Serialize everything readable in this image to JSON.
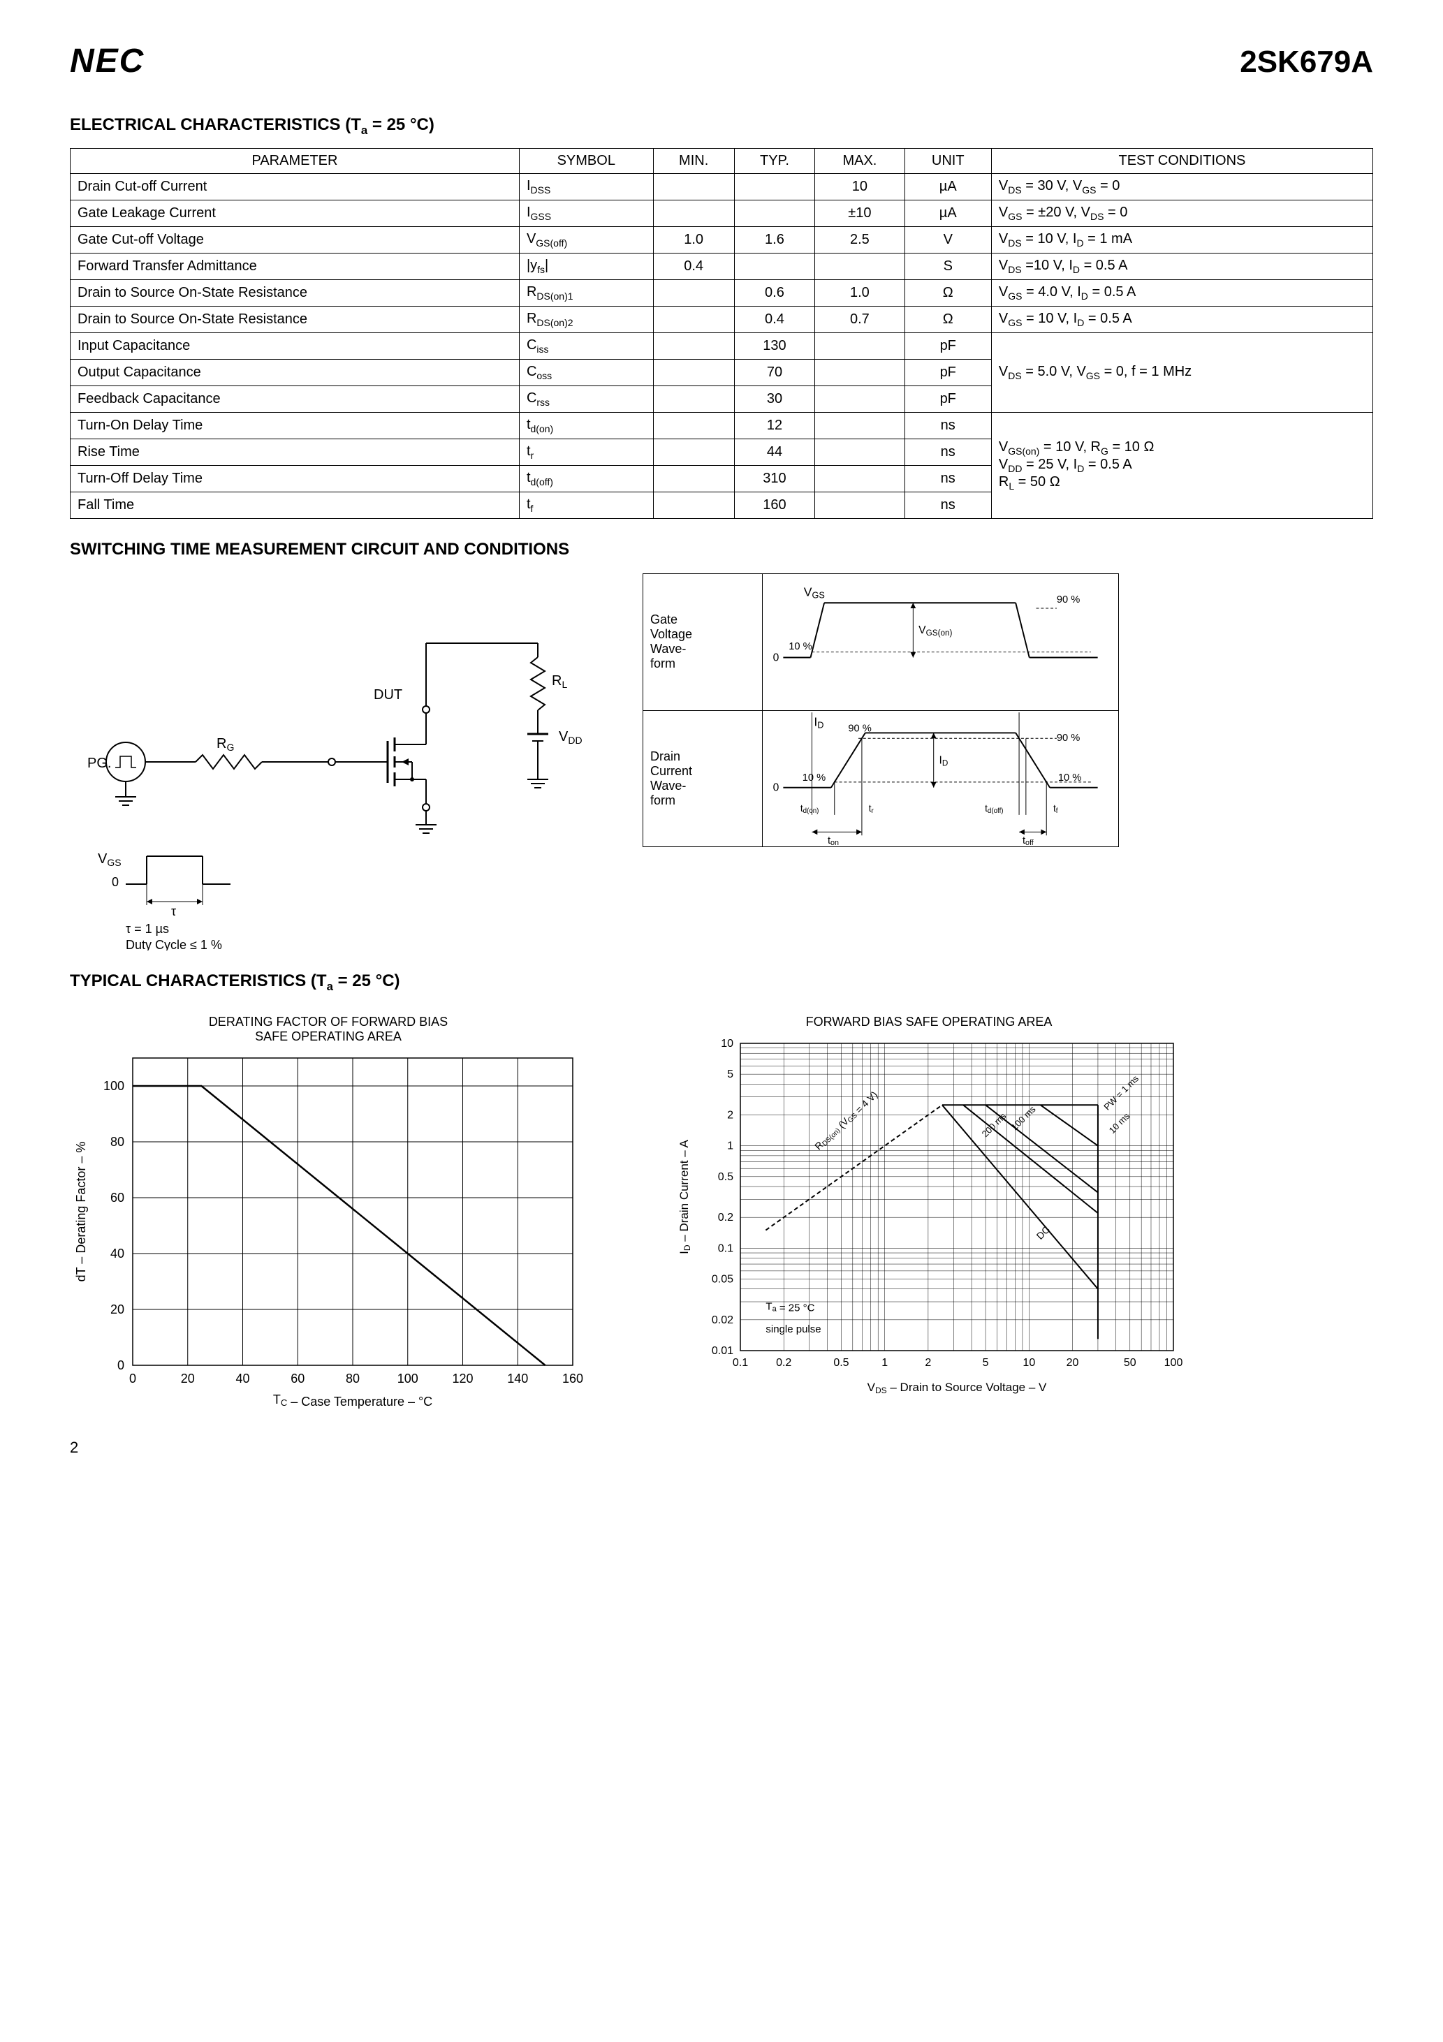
{
  "header": {
    "logo": "NEC",
    "part_number": "2SK679A"
  },
  "elec_section": {
    "title": "ELECTRICAL CHARACTERISTICS (T",
    "title_sub": "a",
    "title_rest": " = 25 °C)",
    "columns": [
      "PARAMETER",
      "SYMBOL",
      "MIN.",
      "TYP.",
      "MAX.",
      "UNIT",
      "TEST CONDITIONS"
    ],
    "rows": [
      {
        "param": "Drain Cut-off Current",
        "sym": "I",
        "sub": "DSS",
        "min": "",
        "typ": "",
        "max": "10",
        "unit": "µA",
        "cond": "V_DS = 30 V, V_GS = 0"
      },
      {
        "param": "Gate Leakage Current",
        "sym": "I",
        "sub": "GSS",
        "min": "",
        "typ": "",
        "max": "±10",
        "unit": "µA",
        "cond": "V_GS = ±20 V, V_DS = 0"
      },
      {
        "param": "Gate Cut-off Voltage",
        "sym": "V",
        "sub": "GS(off)",
        "min": "1.0",
        "typ": "1.6",
        "max": "2.5",
        "unit": "V",
        "cond": "V_DS = 10 V, I_D = 1 mA"
      },
      {
        "param": "Forward Transfer Admittance",
        "sym": "|y",
        "sub": "fs",
        "sym2": "|",
        "min": "0.4",
        "typ": "",
        "max": "",
        "unit": "S",
        "cond": "V_DS =10 V, I_D = 0.5 A"
      },
      {
        "param": "Drain to Source On-State Resistance",
        "sym": "R",
        "sub": "DS(on)1",
        "min": "",
        "typ": "0.6",
        "max": "1.0",
        "unit": "Ω",
        "cond": "V_GS = 4.0 V, I_D = 0.5 A"
      },
      {
        "param": "Drain to Source On-State Resistance",
        "sym": "R",
        "sub": "DS(on)2",
        "min": "",
        "typ": "0.4",
        "max": "0.7",
        "unit": "Ω",
        "cond": "V_GS = 10 V, I_D = 0.5 A"
      },
      {
        "param": "Input Capacitance",
        "sym": "C",
        "sub": "iss",
        "min": "",
        "typ": "130",
        "max": "",
        "unit": "pF",
        "cond": "",
        "group": 1
      },
      {
        "param": "Output Capacitance",
        "sym": "C",
        "sub": "oss",
        "min": "",
        "typ": "70",
        "max": "",
        "unit": "pF",
        "cond": "V_DS = 5.0 V, V_GS = 0, f = 1 MHz",
        "group": 1
      },
      {
        "param": "Feedback Capacitance",
        "sym": "C",
        "sub": "rss",
        "min": "",
        "typ": "30",
        "max": "",
        "unit": "pF",
        "cond": "",
        "group": 1
      },
      {
        "param": "Turn-On Delay Time",
        "sym": "t",
        "sub": "d(on)",
        "min": "",
        "typ": "12",
        "max": "",
        "unit": "ns",
        "cond": "",
        "group": 2
      },
      {
        "param": "Rise Time",
        "sym": "t",
        "sub": "r",
        "min": "",
        "typ": "44",
        "max": "",
        "unit": "ns",
        "cond": "V_GS(on) = 10 V, R_G = 10 Ω\nV_DD = 25 V, I_D = 0.5 A\nR_L = 50 Ω",
        "group": 2
      },
      {
        "param": "Turn-Off Delay Time",
        "sym": "t",
        "sub": "d(off)",
        "min": "",
        "typ": "310",
        "max": "",
        "unit": "ns",
        "cond": "",
        "group": 2
      },
      {
        "param": "Fall Time",
        "sym": "t",
        "sub": "f",
        "min": "",
        "typ": "160",
        "max": "",
        "unit": "ns",
        "cond": "",
        "group": 2
      }
    ]
  },
  "switching_section": {
    "title": "SWITCHING TIME MEASUREMENT CIRCUIT AND CONDITIONS",
    "labels": {
      "pg": "PG.",
      "rg": "R_G",
      "dut": "DUT",
      "rl": "R_L",
      "vdd": "V_DD",
      "vgs": "V_GS",
      "zero": "0",
      "tau": "τ",
      "tau_note": "τ = 1 µs",
      "duty_note": "Duty Cycle ≤ 1 %"
    },
    "waveform": {
      "gate_label": "Gate\nVoltage\nWave-\nform",
      "drain_label": "Drain\nCurrent\nWave-\nform",
      "vgs": "V_GS",
      "vgs_on": "V_GS(on)",
      "id": "I_D",
      "p10": "10 %",
      "p90": "90 %",
      "zero": "0",
      "tdon": "t_d(on)",
      "tr": "t_r",
      "tdoff": "t_d(off)",
      "tf": "t_f",
      "ton": "t_on",
      "toff": "t_off"
    }
  },
  "typical_section": {
    "title": "TYPICAL CHARACTERISTICS (T",
    "title_sub": "a",
    "title_rest": " = 25 °C)"
  },
  "chart1": {
    "type": "line",
    "title": "DERATING FACTOR OF FORWARD BIAS\nSAFE OPERATING AREA",
    "xlabel": "T_C – Case Temperature – °C",
    "ylabel": "dT – Derating Factor – %",
    "xlim": [
      0,
      160
    ],
    "ylim": [
      0,
      110
    ],
    "xticks": [
      0,
      20,
      40,
      60,
      80,
      100,
      120,
      140,
      160
    ],
    "yticks": [
      0,
      20,
      40,
      60,
      80,
      100
    ],
    "line": [
      [
        0,
        100
      ],
      [
        25,
        100
      ],
      [
        150,
        0
      ]
    ],
    "line_color": "#000000",
    "line_width": 2.5,
    "grid_color": "#000000",
    "background": "#ffffff",
    "font_size": 18
  },
  "chart2": {
    "type": "loglog",
    "title": "FORWARD BIAS SAFE OPERATING AREA",
    "xlabel": "V_DS – Drain to Source Voltage – V",
    "ylabel": "I_D – Drain Current – A",
    "xlim": [
      0.1,
      100
    ],
    "ylim": [
      0.01,
      10
    ],
    "xticks": [
      0.1,
      0.2,
      0.5,
      1.0,
      2.0,
      5.0,
      10,
      20,
      50,
      100
    ],
    "yticks": [
      0.01,
      0.02,
      0.05,
      0.1,
      0.2,
      0.5,
      1.0,
      2.0,
      5.0,
      10
    ],
    "annotations": {
      "rdson": "R_DS(on) (V_GS = 4 V)",
      "pw1": "PW = 1 ms",
      "pw10": "10 ms",
      "pw100": "100 ms",
      "pw200": "200 ms",
      "dc": "DC",
      "note1": "T_a = 25 °C",
      "note2": "single pulse"
    },
    "line_color": "#000000",
    "grid_color": "#000000",
    "background": "#ffffff",
    "font_size": 18
  },
  "page_number": "2"
}
